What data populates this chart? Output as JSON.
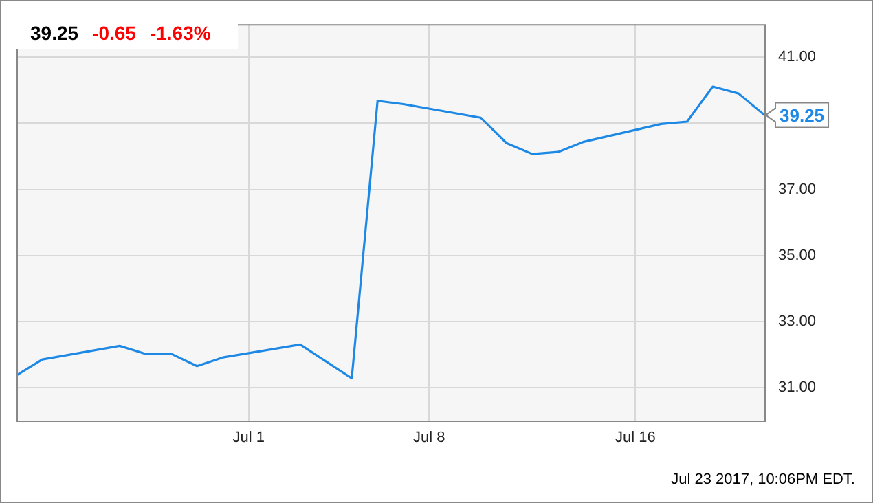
{
  "chart_data": {
    "type": "line",
    "title": "39.25",
    "annotations": [
      "-0.65",
      "-1.63%",
      "Jul 23 2017, 10:06PM EDT.",
      {
        "text": "39.25",
        "x": "2017-07-21",
        "y": 39.25
      }
    ],
    "x": [
      "2017-06-22",
      "2017-06-23",
      "2017-06-26",
      "2017-06-27",
      "2017-06-28",
      "2017-06-29",
      "2017-06-30",
      "2017-07-03",
      "2017-07-05",
      "2017-07-06",
      "2017-07-07",
      "2017-07-10",
      "2017-07-11",
      "2017-07-12",
      "2017-07-13",
      "2017-07-14",
      "2017-07-17",
      "2017-07-18",
      "2017-07-19",
      "2017-07-20",
      "2017-07-21"
    ],
    "series": [
      {
        "color": "#1e88e5",
        "values": [
          31.37,
          31.85,
          32.26,
          32.02,
          32.02,
          31.65,
          31.91,
          32.3,
          31.28,
          39.68,
          39.58,
          39.17,
          38.4,
          38.07,
          38.13,
          38.44,
          38.98,
          39.05,
          40.11,
          39.9,
          39.25
        ]
      }
    ],
    "xlim": [
      "2017-06-22",
      "2017-07-21"
    ],
    "xticks": [
      {
        "value": "2017-07-01",
        "label": "Jul 1"
      },
      {
        "value": "2017-07-08",
        "label": "Jul 8"
      },
      {
        "value": "2017-07-16",
        "label": "Jul 16"
      }
    ],
    "ylim": [
      30,
      42
    ],
    "yticks": [
      {
        "value": 31,
        "label": "31.00"
      },
      {
        "value": 33,
        "label": "33.00"
      },
      {
        "value": 35,
        "label": "35.00"
      },
      {
        "value": 37,
        "label": "37.00"
      },
      {
        "value": 39,
        "label": null
      },
      {
        "value": 41,
        "label": "41.00"
      }
    ],
    "grid": true,
    "legend": false,
    "marker": "none",
    "line_style": "solid"
  }
}
